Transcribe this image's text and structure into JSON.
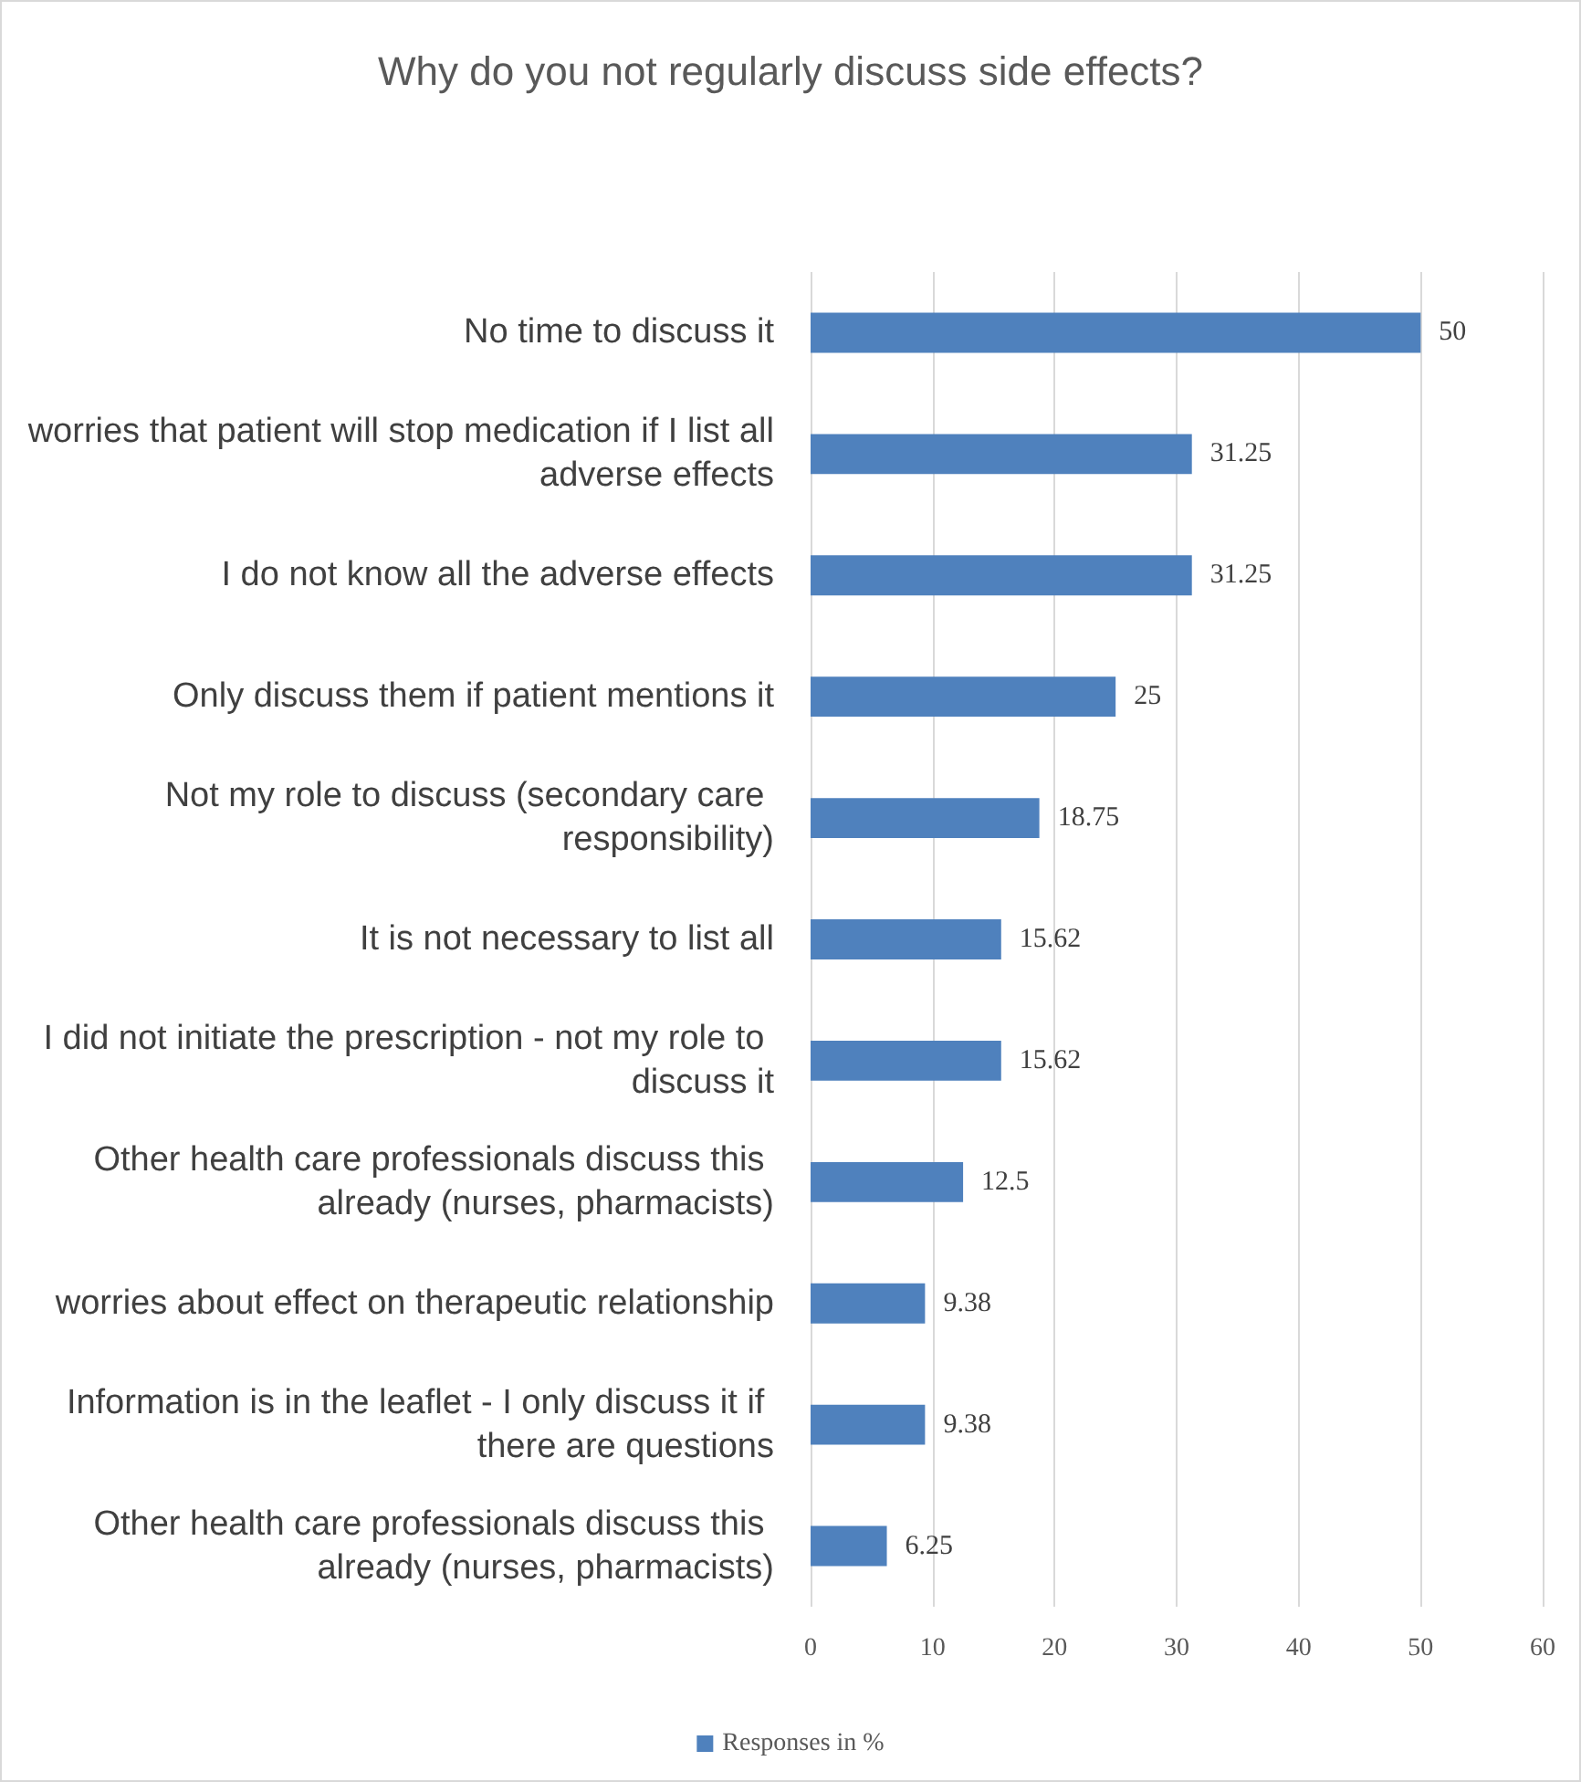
{
  "chart_data": {
    "type": "bar",
    "orientation": "horizontal",
    "title": "Why do you not regularly discuss side effects?",
    "categories": [
      "No time to discuss it",
      "worries that patient will stop medication if I list all adverse effects",
      "I do not know all the adverse effects",
      "Only discuss them if patient mentions it",
      "Not my role to discuss (secondary care responsibility)",
      "It is not necessary to list all",
      "I did not initiate the prescription - not my role to discuss it",
      "Other health care professionals discuss this already (nurses, pharmacists)",
      "worries about effect on therapeutic relationship",
      "Information is in the leaflet - I only discuss it if there are questions",
      "Other health care professionals discuss this already (nurses, pharmacists)"
    ],
    "series": [
      {
        "name": "Responses in %",
        "color": "#4f81bd",
        "values": [
          50,
          31.25,
          31.25,
          25,
          18.75,
          15.62,
          15.62,
          12.5,
          9.38,
          9.38,
          6.25
        ]
      }
    ],
    "xlim": [
      0,
      60
    ],
    "xticks": [
      0,
      10,
      20,
      30,
      40,
      50,
      60
    ],
    "grid": "x",
    "legend": "bottom",
    "data_labels": true
  }
}
